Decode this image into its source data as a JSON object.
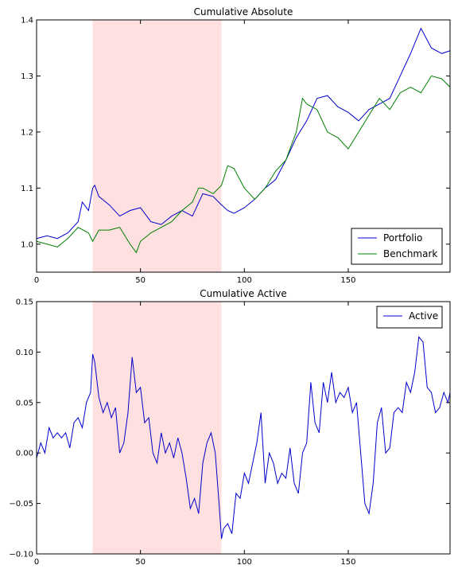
{
  "chart_data": [
    {
      "type": "line",
      "title": "Cumulative Absolute",
      "xlabel": "",
      "ylabel": "",
      "xlim": [
        0,
        199
      ],
      "ylim": [
        0.95,
        1.4
      ],
      "xticks": [
        0,
        50,
        100,
        150
      ],
      "yticks": [
        1.0,
        1.1,
        1.2,
        1.3,
        1.4
      ],
      "ytick_labels": [
        "1.0",
        "1.1",
        "1.2",
        "1.3",
        "1.4"
      ],
      "shaded_region": {
        "x": [
          27,
          89
        ],
        "color": "#ffe0e0"
      },
      "legend": {
        "placement": "lower-right"
      },
      "grid": false,
      "series": [
        {
          "name": "Portfolio",
          "color": "#0000cc",
          "points": [
            [
              0,
              1.01
            ],
            [
              5,
              1.015
            ],
            [
              10,
              1.01
            ],
            [
              15,
              1.02
            ],
            [
              20,
              1.04
            ],
            [
              22,
              1.075
            ],
            [
              25,
              1.06
            ],
            [
              27,
              1.1
            ],
            [
              28,
              1.105
            ],
            [
              30,
              1.085
            ],
            [
              35,
              1.07
            ],
            [
              40,
              1.05
            ],
            [
              45,
              1.06
            ],
            [
              50,
              1.065
            ],
            [
              55,
              1.04
            ],
            [
              60,
              1.035
            ],
            [
              65,
              1.05
            ],
            [
              70,
              1.06
            ],
            [
              75,
              1.05
            ],
            [
              80,
              1.09
            ],
            [
              85,
              1.085
            ],
            [
              89,
              1.07
            ],
            [
              92,
              1.06
            ],
            [
              95,
              1.055
            ],
            [
              100,
              1.065
            ],
            [
              105,
              1.08
            ],
            [
              110,
              1.1
            ],
            [
              115,
              1.115
            ],
            [
              120,
              1.15
            ],
            [
              125,
              1.19
            ],
            [
              130,
              1.22
            ],
            [
              135,
              1.26
            ],
            [
              140,
              1.265
            ],
            [
              145,
              1.245
            ],
            [
              150,
              1.235
            ],
            [
              155,
              1.22
            ],
            [
              160,
              1.24
            ],
            [
              165,
              1.25
            ],
            [
              170,
              1.26
            ],
            [
              175,
              1.3
            ],
            [
              180,
              1.34
            ],
            [
              185,
              1.385
            ],
            [
              190,
              1.35
            ],
            [
              195,
              1.34
            ],
            [
              199,
              1.345
            ]
          ]
        },
        {
          "name": "Benchmark",
          "color": "#007f00",
          "points": [
            [
              0,
              1.005
            ],
            [
              5,
              1.0
            ],
            [
              10,
              0.995
            ],
            [
              15,
              1.01
            ],
            [
              20,
              1.03
            ],
            [
              25,
              1.02
            ],
            [
              27,
              1.005
            ],
            [
              30,
              1.025
            ],
            [
              35,
              1.025
            ],
            [
              40,
              1.03
            ],
            [
              45,
              1.0
            ],
            [
              48,
              0.985
            ],
            [
              50,
              1.005
            ],
            [
              55,
              1.02
            ],
            [
              60,
              1.03
            ],
            [
              65,
              1.04
            ],
            [
              70,
              1.06
            ],
            [
              75,
              1.075
            ],
            [
              78,
              1.1
            ],
            [
              80,
              1.1
            ],
            [
              85,
              1.09
            ],
            [
              89,
              1.105
            ],
            [
              92,
              1.14
            ],
            [
              95,
              1.135
            ],
            [
              100,
              1.1
            ],
            [
              105,
              1.08
            ],
            [
              110,
              1.1
            ],
            [
              115,
              1.13
            ],
            [
              120,
              1.15
            ],
            [
              125,
              1.2
            ],
            [
              128,
              1.26
            ],
            [
              130,
              1.25
            ],
            [
              135,
              1.24
            ],
            [
              140,
              1.2
            ],
            [
              145,
              1.19
            ],
            [
              150,
              1.17
            ],
            [
              155,
              1.2
            ],
            [
              160,
              1.23
            ],
            [
              165,
              1.26
            ],
            [
              170,
              1.24
            ],
            [
              175,
              1.27
            ],
            [
              180,
              1.28
            ],
            [
              185,
              1.27
            ],
            [
              190,
              1.3
            ],
            [
              195,
              1.295
            ],
            [
              199,
              1.28
            ]
          ]
        }
      ]
    },
    {
      "type": "line",
      "title": "Cumulative Active",
      "xlabel": "",
      "ylabel": "",
      "xlim": [
        0,
        199
      ],
      "ylim": [
        -0.1,
        0.15
      ],
      "xticks": [
        0,
        50,
        100,
        150
      ],
      "yticks": [
        -0.1,
        -0.05,
        0.0,
        0.05,
        0.1,
        0.15
      ],
      "ytick_labels": [
        "−0.10",
        "−0.05",
        "0.00",
        "0.05",
        "0.10",
        "0.15"
      ],
      "shaded_region": {
        "x": [
          27,
          89
        ],
        "color": "#ffe0e0"
      },
      "legend": {
        "placement": "top-right"
      },
      "grid": false,
      "series": [
        {
          "name": "Active",
          "color": "#0000cc",
          "points": [
            [
              0,
              -0.005
            ],
            [
              2,
              0.01
            ],
            [
              4,
              0.0
            ],
            [
              6,
              0.025
            ],
            [
              8,
              0.015
            ],
            [
              10,
              0.02
            ],
            [
              12,
              0.015
            ],
            [
              14,
              0.02
            ],
            [
              16,
              0.005
            ],
            [
              18,
              0.03
            ],
            [
              20,
              0.035
            ],
            [
              22,
              0.025
            ],
            [
              24,
              0.05
            ],
            [
              26,
              0.06
            ],
            [
              27,
              0.098
            ],
            [
              28,
              0.09
            ],
            [
              30,
              0.055
            ],
            [
              32,
              0.04
            ],
            [
              34,
              0.05
            ],
            [
              36,
              0.035
            ],
            [
              38,
              0.045
            ],
            [
              40,
              0.0
            ],
            [
              42,
              0.01
            ],
            [
              44,
              0.04
            ],
            [
              46,
              0.095
            ],
            [
              48,
              0.06
            ],
            [
              50,
              0.065
            ],
            [
              52,
              0.03
            ],
            [
              54,
              0.035
            ],
            [
              56,
              0.0
            ],
            [
              58,
              -0.01
            ],
            [
              60,
              0.02
            ],
            [
              62,
              0.0
            ],
            [
              64,
              0.01
            ],
            [
              66,
              -0.005
            ],
            [
              68,
              0.015
            ],
            [
              70,
              0.0
            ],
            [
              72,
              -0.025
            ],
            [
              74,
              -0.055
            ],
            [
              76,
              -0.045
            ],
            [
              78,
              -0.06
            ],
            [
              80,
              -0.01
            ],
            [
              82,
              0.01
            ],
            [
              84,
              0.02
            ],
            [
              86,
              0.0
            ],
            [
              88,
              -0.055
            ],
            [
              89,
              -0.085
            ],
            [
              90,
              -0.075
            ],
            [
              92,
              -0.07
            ],
            [
              94,
              -0.08
            ],
            [
              96,
              -0.04
            ],
            [
              98,
              -0.045
            ],
            [
              100,
              -0.02
            ],
            [
              102,
              -0.03
            ],
            [
              104,
              -0.01
            ],
            [
              106,
              0.01
            ],
            [
              108,
              0.04
            ],
            [
              110,
              -0.03
            ],
            [
              112,
              0.0
            ],
            [
              114,
              -0.01
            ],
            [
              116,
              -0.03
            ],
            [
              118,
              -0.02
            ],
            [
              120,
              -0.025
            ],
            [
              122,
              0.005
            ],
            [
              124,
              -0.03
            ],
            [
              126,
              -0.04
            ],
            [
              128,
              0.0
            ],
            [
              130,
              0.01
            ],
            [
              132,
              0.07
            ],
            [
              134,
              0.03
            ],
            [
              136,
              0.02
            ],
            [
              138,
              0.07
            ],
            [
              140,
              0.05
            ],
            [
              142,
              0.08
            ],
            [
              144,
              0.05
            ],
            [
              146,
              0.06
            ],
            [
              148,
              0.055
            ],
            [
              150,
              0.065
            ],
            [
              152,
              0.04
            ],
            [
              154,
              0.05
            ],
            [
              156,
              0.0
            ],
            [
              158,
              -0.05
            ],
            [
              160,
              -0.06
            ],
            [
              162,
              -0.03
            ],
            [
              164,
              0.03
            ],
            [
              166,
              0.045
            ],
            [
              168,
              0.0
            ],
            [
              170,
              0.005
            ],
            [
              172,
              0.04
            ],
            [
              174,
              0.045
            ],
            [
              176,
              0.04
            ],
            [
              178,
              0.07
            ],
            [
              180,
              0.06
            ],
            [
              182,
              0.08
            ],
            [
              184,
              0.115
            ],
            [
              186,
              0.11
            ],
            [
              188,
              0.065
            ],
            [
              190,
              0.06
            ],
            [
              192,
              0.04
            ],
            [
              194,
              0.045
            ],
            [
              196,
              0.06
            ],
            [
              198,
              0.05
            ],
            [
              199,
              0.06
            ]
          ]
        }
      ]
    }
  ]
}
